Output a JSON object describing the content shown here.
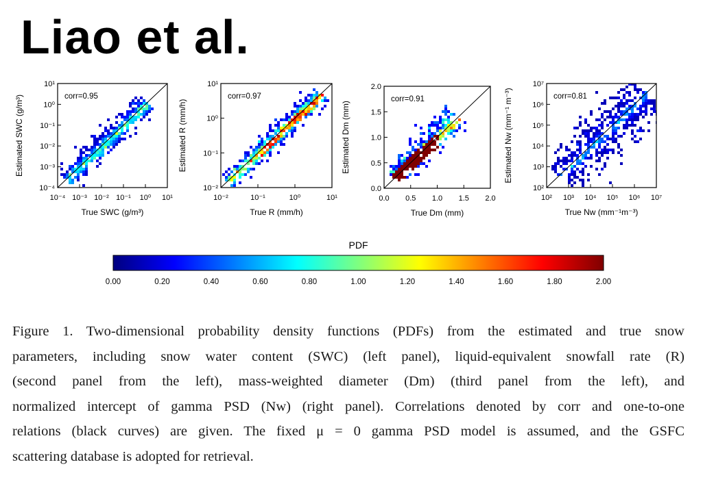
{
  "title": "Liao et al.",
  "colors": {
    "one_to_one_line": "#000000",
    "colormap": [
      "#00007f",
      "#0000ff",
      "#007fff",
      "#00ffff",
      "#7fff7f",
      "#ffff00",
      "#ff7f00",
      "#ff0000",
      "#7f0000"
    ]
  },
  "panels": [
    {
      "id": "swc",
      "corr": "corr=0.95",
      "ylabel": "Estimated SWC (g/m³)",
      "xlabel": "True SWC (g/m³)",
      "yticks": [
        "10¹",
        "10⁰",
        "10⁻¹",
        "10⁻²",
        "10⁻³",
        "10⁻⁴"
      ],
      "xticks": [
        "10⁻⁴",
        "10⁻³",
        "10⁻²",
        "10⁻¹",
        "10⁰",
        "10¹"
      ]
    },
    {
      "id": "r",
      "corr": "corr=0.97",
      "ylabel": "Estimated R (mm/h)",
      "xlabel": "True R (mm/h)",
      "yticks": [
        "10¹",
        "10⁰",
        "10⁻¹",
        "10⁻²"
      ],
      "xticks": [
        "10⁻²",
        "10⁻¹",
        "10⁰",
        "10¹"
      ]
    },
    {
      "id": "dm",
      "corr": "corr=0.91",
      "ylabel": "Estimated Dm (mm)",
      "xlabel": "True Dm (mm)",
      "yticks": [
        "2.0",
        "1.5",
        "1.0",
        "0.5",
        "0.0"
      ],
      "xticks": [
        "0.0",
        "0.5",
        "1.0",
        "1.5",
        "2.0"
      ]
    },
    {
      "id": "nw",
      "corr": "corr=0.81",
      "ylabel": "Estimated Nw (mm⁻¹ m⁻³)",
      "xlabel": "True Nw (mm⁻¹m⁻³)",
      "yticks": [
        "10⁷",
        "10⁶",
        "10⁵",
        "10⁴",
        "10³",
        "10²"
      ],
      "xticks": [
        "10²",
        "10³",
        "10⁴",
        "10⁵",
        "10⁶",
        "10⁷"
      ]
    }
  ],
  "colorbar": {
    "label": "PDF",
    "ticks": [
      "0.00",
      "0.20",
      "0.40",
      "0.60",
      "0.80",
      "1.00",
      "1.20",
      "1.40",
      "1.60",
      "1.80",
      "2.00"
    ]
  },
  "caption": {
    "lines": [
      "Figure 1. Two-dimensional probability density functions (PDFs) from the estimated and true snow",
      "parameters, including snow water content (SWC) (left panel), liquid-equivalent snowfall rate (R)",
      "(second panel from the left), mass-weighted diameter (Dm) (third panel from the left), and",
      "normalized intercept of gamma PSD (Nw) (right panel). Correlations denoted by corr and one-to-one",
      "relations (black curves) are given. The fixed μ = 0 gamma PSD model is assumed, and the GSFC",
      "scattering database is adopted for retrieval."
    ]
  }
}
